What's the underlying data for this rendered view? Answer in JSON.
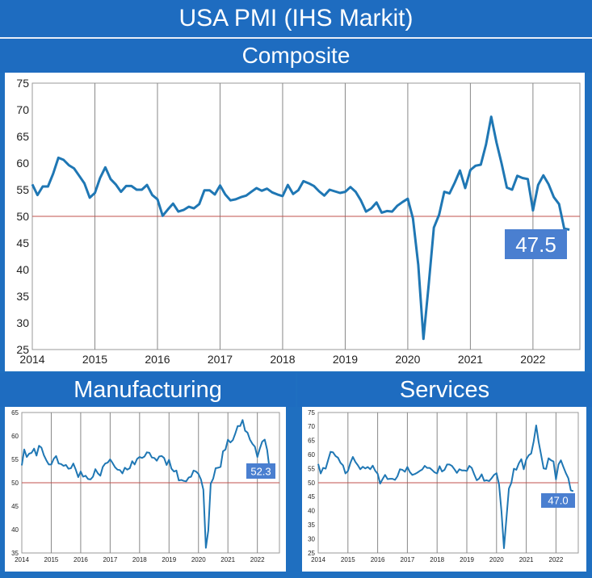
{
  "header": {
    "title": "USA PMI (IHS Markit)",
    "composite_label": "Composite",
    "manufacturing_label": "Manufacturing",
    "services_label": "Services"
  },
  "colors": {
    "banner": "#1e6cc0",
    "line": "#1f77b4",
    "ref": "#c0504d",
    "grid": "#888888",
    "badge": "#4a7fd0"
  },
  "chart_data": [
    {
      "type": "line",
      "title": "Composite",
      "xlabel": "",
      "ylabel": "",
      "ylim": [
        25,
        75
      ],
      "xlim": [
        2014,
        2022.75
      ],
      "yticks": [
        "25",
        "30",
        "35",
        "40",
        "45",
        "50",
        "55",
        "60",
        "65",
        "70",
        "75"
      ],
      "xticks": [
        "2014",
        "2015",
        "2016",
        "2017",
        "2018",
        "2019",
        "2020",
        "2021",
        "2022"
      ],
      "reference_line": 50,
      "latest_label": "47.5",
      "x": [
        2014.0,
        2014.083,
        2014.167,
        2014.25,
        2014.333,
        2014.417,
        2014.5,
        2014.583,
        2014.667,
        2014.75,
        2014.833,
        2014.917,
        2015.0,
        2015.083,
        2015.167,
        2015.25,
        2015.333,
        2015.417,
        2015.5,
        2015.583,
        2015.667,
        2015.75,
        2015.833,
        2015.917,
        2016.0,
        2016.083,
        2016.167,
        2016.25,
        2016.333,
        2016.417,
        2016.5,
        2016.583,
        2016.667,
        2016.75,
        2016.833,
        2016.917,
        2017.0,
        2017.083,
        2017.167,
        2017.25,
        2017.333,
        2017.417,
        2017.5,
        2017.583,
        2017.667,
        2017.75,
        2017.833,
        2017.917,
        2018.0,
        2018.083,
        2018.167,
        2018.25,
        2018.333,
        2018.417,
        2018.5,
        2018.583,
        2018.667,
        2018.75,
        2018.833,
        2018.917,
        2019.0,
        2019.083,
        2019.167,
        2019.25,
        2019.333,
        2019.417,
        2019.5,
        2019.583,
        2019.667,
        2019.75,
        2019.833,
        2019.917,
        2020.0,
        2020.083,
        2020.167,
        2020.25,
        2020.333,
        2020.417,
        2020.5,
        2020.583,
        2020.667,
        2020.75,
        2020.833,
        2020.917,
        2021.0,
        2021.083,
        2021.167,
        2021.25,
        2021.333,
        2021.417,
        2021.5,
        2021.583,
        2021.667,
        2021.75,
        2021.833,
        2021.917,
        2022.0,
        2022.083,
        2022.167,
        2022.25,
        2022.333,
        2022.417,
        2022.5,
        2022.583
      ],
      "values": [
        56.0,
        54.0,
        55.6,
        55.6,
        58.0,
        61.0,
        60.6,
        59.6,
        59.0,
        57.6,
        56.2,
        53.5,
        54.4,
        57.2,
        59.2,
        57.0,
        56.0,
        54.6,
        55.7,
        55.7,
        55.0,
        55.0,
        55.9,
        54.0,
        53.2,
        50.1,
        51.3,
        52.4,
        50.9,
        51.2,
        51.8,
        51.5,
        52.3,
        54.9,
        54.9,
        54.1,
        55.8,
        54.1,
        53.0,
        53.2,
        53.6,
        53.9,
        54.6,
        55.3,
        54.8,
        55.2,
        54.5,
        54.1,
        53.8,
        55.9,
        54.2,
        54.9,
        56.6,
        56.2,
        55.7,
        54.7,
        53.9,
        55.0,
        54.7,
        54.4,
        54.6,
        55.5,
        54.6,
        53.0,
        50.9,
        51.5,
        52.6,
        50.7,
        51.0,
        50.9,
        52.0,
        52.7,
        53.3,
        49.6,
        40.9,
        27.0,
        37.0,
        47.9,
        50.3,
        54.6,
        54.3,
        56.3,
        58.6,
        55.3,
        58.7,
        59.5,
        59.7,
        63.5,
        68.7,
        63.9,
        59.9,
        55.4,
        55.0,
        57.6,
        57.2,
        57.0,
        51.1,
        55.9,
        57.7,
        56.0,
        53.6,
        52.3,
        47.7,
        47.5
      ]
    },
    {
      "type": "line",
      "title": "Manufacturing",
      "ylim": [
        35,
        65
      ],
      "xlim": [
        2014,
        2022.75
      ],
      "yticks": [
        "35",
        "40",
        "45",
        "50",
        "55",
        "60",
        "65"
      ],
      "xticks": [
        "2014",
        "2015",
        "2016",
        "2017",
        "2018",
        "2019",
        "2020",
        "2021",
        "2022"
      ],
      "reference_line": 50,
      "latest_label": "52.3",
      "x": [
        2014.0,
        2014.083,
        2014.167,
        2014.25,
        2014.333,
        2014.417,
        2014.5,
        2014.583,
        2014.667,
        2014.75,
        2014.833,
        2014.917,
        2015.0,
        2015.083,
        2015.167,
        2015.25,
        2015.333,
        2015.417,
        2015.5,
        2015.583,
        2015.667,
        2015.75,
        2015.833,
        2015.917,
        2016.0,
        2016.083,
        2016.167,
        2016.25,
        2016.333,
        2016.417,
        2016.5,
        2016.583,
        2016.667,
        2016.75,
        2016.833,
        2016.917,
        2017.0,
        2017.083,
        2017.167,
        2017.25,
        2017.333,
        2017.417,
        2017.5,
        2017.583,
        2017.667,
        2017.75,
        2017.833,
        2017.917,
        2018.0,
        2018.083,
        2018.167,
        2018.25,
        2018.333,
        2018.417,
        2018.5,
        2018.583,
        2018.667,
        2018.75,
        2018.833,
        2018.917,
        2019.0,
        2019.083,
        2019.167,
        2019.25,
        2019.333,
        2019.417,
        2019.5,
        2019.583,
        2019.667,
        2019.75,
        2019.833,
        2019.917,
        2020.0,
        2020.083,
        2020.167,
        2020.25,
        2020.333,
        2020.417,
        2020.5,
        2020.583,
        2020.667,
        2020.75,
        2020.833,
        2020.917,
        2021.0,
        2021.083,
        2021.167,
        2021.25,
        2021.333,
        2021.417,
        2021.5,
        2021.583,
        2021.667,
        2021.75,
        2021.833,
        2021.917,
        2022.0,
        2022.083,
        2022.167,
        2022.25,
        2022.333,
        2022.417,
        2022.5,
        2022.583
      ],
      "values": [
        53.7,
        57.1,
        55.5,
        56.2,
        56.4,
        57.3,
        55.8,
        57.9,
        57.5,
        55.9,
        54.8,
        53.9,
        53.9,
        55.1,
        55.7,
        54.1,
        54.0,
        53.6,
        53.8,
        53.0,
        53.1,
        54.1,
        52.8,
        51.2,
        52.4,
        51.3,
        51.5,
        50.8,
        50.7,
        51.3,
        52.9,
        52.0,
        51.5,
        53.4,
        54.1,
        54.3,
        55.0,
        54.2,
        53.3,
        52.8,
        52.7,
        52.0,
        53.2,
        52.8,
        53.1,
        54.6,
        53.9,
        55.1,
        55.5,
        55.3,
        55.6,
        56.5,
        56.4,
        55.4,
        55.3,
        54.7,
        55.6,
        55.7,
        55.3,
        53.8,
        54.9,
        53.0,
        52.4,
        52.6,
        50.5,
        50.6,
        50.4,
        50.3,
        51.1,
        51.3,
        52.6,
        52.4,
        51.9,
        50.7,
        48.5,
        36.1,
        39.8,
        49.8,
        50.9,
        53.1,
        53.2,
        53.4,
        56.7,
        57.1,
        59.2,
        58.6,
        59.1,
        60.5,
        62.1,
        62.1,
        63.4,
        61.1,
        60.7,
        59.2,
        58.3,
        57.7,
        55.5,
        57.3,
        58.8,
        59.2,
        57.0,
        52.7,
        52.2,
        52.3
      ]
    },
    {
      "type": "line",
      "title": "Services",
      "ylim": [
        25,
        75
      ],
      "xlim": [
        2014,
        2022.75
      ],
      "yticks": [
        "25",
        "30",
        "35",
        "40",
        "45",
        "50",
        "55",
        "60",
        "65",
        "70",
        "75"
      ],
      "xticks": [
        "2014",
        "2015",
        "2016",
        "2017",
        "2018",
        "2019",
        "2020",
        "2021",
        "2022"
      ],
      "reference_line": 50,
      "latest_label": "47.0",
      "x": [
        2014.0,
        2014.083,
        2014.167,
        2014.25,
        2014.333,
        2014.417,
        2014.5,
        2014.583,
        2014.667,
        2014.75,
        2014.833,
        2014.917,
        2015.0,
        2015.083,
        2015.167,
        2015.25,
        2015.333,
        2015.417,
        2015.5,
        2015.583,
        2015.667,
        2015.75,
        2015.833,
        2015.917,
        2016.0,
        2016.083,
        2016.167,
        2016.25,
        2016.333,
        2016.417,
        2016.5,
        2016.583,
        2016.667,
        2016.75,
        2016.833,
        2016.917,
        2017.0,
        2017.083,
        2017.167,
        2017.25,
        2017.333,
        2017.417,
        2017.5,
        2017.583,
        2017.667,
        2017.75,
        2017.833,
        2017.917,
        2018.0,
        2018.083,
        2018.167,
        2018.25,
        2018.333,
        2018.417,
        2018.5,
        2018.583,
        2018.667,
        2018.75,
        2018.833,
        2018.917,
        2019.0,
        2019.083,
        2019.167,
        2019.25,
        2019.333,
        2019.417,
        2019.5,
        2019.583,
        2019.667,
        2019.75,
        2019.833,
        2019.917,
        2020.0,
        2020.083,
        2020.167,
        2020.25,
        2020.333,
        2020.417,
        2020.5,
        2020.583,
        2020.667,
        2020.75,
        2020.833,
        2020.917,
        2021.0,
        2021.083,
        2021.167,
        2021.25,
        2021.333,
        2021.417,
        2021.5,
        2021.583,
        2021.667,
        2021.75,
        2021.833,
        2021.917,
        2022.0,
        2022.083,
        2022.167,
        2022.25,
        2022.333,
        2022.417,
        2022.5,
        2022.583
      ],
      "values": [
        56.7,
        53.3,
        55.3,
        55.0,
        58.1,
        61.0,
        60.8,
        59.5,
        58.9,
        57.1,
        56.2,
        53.3,
        54.2,
        57.1,
        59.2,
        57.4,
        56.2,
        54.8,
        55.7,
        55.1,
        55.6,
        54.8,
        56.1,
        54.3,
        53.2,
        49.7,
        51.3,
        52.8,
        51.3,
        51.4,
        51.4,
        51.0,
        52.3,
        54.8,
        54.6,
        53.9,
        55.6,
        53.8,
        52.8,
        53.1,
        53.6,
        54.2,
        54.7,
        56.0,
        55.3,
        55.3,
        54.5,
        53.7,
        53.3,
        55.9,
        54.0,
        54.6,
        56.5,
        56.5,
        56.0,
        54.8,
        53.5,
        54.8,
        54.4,
        54.4,
        54.2,
        56.0,
        55.3,
        53.0,
        50.9,
        51.5,
        53.0,
        50.7,
        50.9,
        50.6,
        51.6,
        52.8,
        53.4,
        49.4,
        39.8,
        26.7,
        37.5,
        47.9,
        50.0,
        55.0,
        54.6,
        56.9,
        58.4,
        54.8,
        58.3,
        59.8,
        60.4,
        64.7,
        70.4,
        64.6,
        59.9,
        55.1,
        54.9,
        58.7,
        58.0,
        57.6,
        51.2,
        56.5,
        58.0,
        55.6,
        53.4,
        51.6,
        47.3,
        47.0
      ]
    }
  ]
}
